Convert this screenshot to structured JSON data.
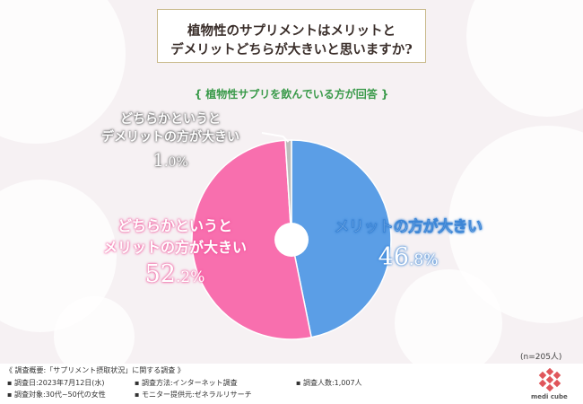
{
  "title_lines": [
    "植物性のサプリメントはメリットと",
    "デメリットどちらが大きいと思いますか?"
  ],
  "subtitle": "{ 植物性サプリを飲んでいる方が回答 }",
  "sample_size": "(n=205人)",
  "chart_data": {
    "type": "pie",
    "start_angle_deg": 0,
    "direction": "clockwise",
    "slices": [
      {
        "label_lines": [
          "メリットの方が大きい"
        ],
        "value": 46.8,
        "display_main": "46",
        "display_decimal": ".8%",
        "color": "#5b9ee6"
      },
      {
        "label_lines": [
          "どちらかというと",
          "メリットの方が大きい"
        ],
        "value": 52.2,
        "display_main": "52",
        "display_decimal": ".2%",
        "color": "#f86fae"
      },
      {
        "label_lines": [
          "どちらかというと",
          "デメリットの方が大きい"
        ],
        "value": 1.0,
        "display_main": "1",
        "display_decimal": ".0%",
        "color": "#bdbdbd"
      }
    ]
  },
  "footer": {
    "overview": "《 調査概要:「サプリメント摂取状況」に関する調査 》",
    "date": "▪ 調査日:2023年7月12日(水)",
    "method": "▪ 調査方法:インターネット調査",
    "count": "▪ 調査人数:1,007人",
    "target": "▪ 調査対象:30代~50代の女性",
    "monitor": "▪ モニター提供元:ゼネラルリサーチ"
  },
  "logo_text": "medi cube"
}
